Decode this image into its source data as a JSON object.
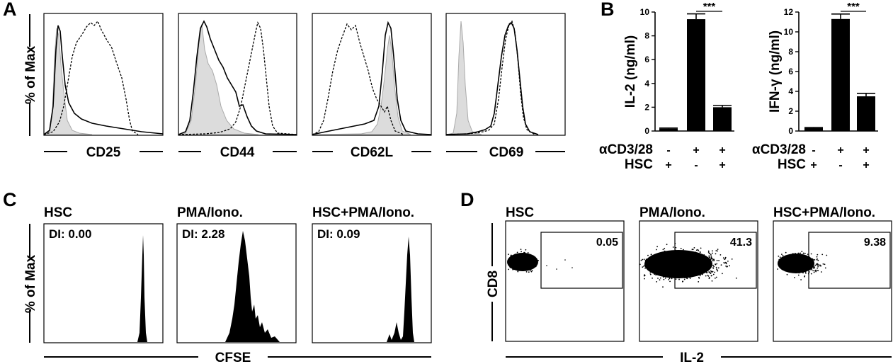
{
  "panels": {
    "A": {
      "letter": "A",
      "ylabel": "% of Max",
      "plots": [
        {
          "xlabel": "CD25"
        },
        {
          "xlabel": "CD44"
        },
        {
          "xlabel": "CD62L"
        },
        {
          "xlabel": "CD69"
        }
      ]
    },
    "B": {
      "letter": "B",
      "row_labels": {
        "acd": "αCD3/28",
        "hsc": "HSC"
      },
      "conditions": [
        {
          "acd": "-",
          "hsc": "+"
        },
        {
          "acd": "+",
          "hsc": "-"
        },
        {
          "acd": "+",
          "hsc": "+"
        }
      ]
    },
    "C": {
      "letter": "C",
      "ylabel": "% of Max",
      "xlabel": "CFSE",
      "plots": [
        {
          "title": "HSC",
          "di": "DI: 0.00"
        },
        {
          "title": "PMA/Iono.",
          "di": "DI: 2.28"
        },
        {
          "title": "HSC+PMA/Iono.",
          "di": "DI: 0.09"
        }
      ]
    },
    "D": {
      "letter": "D",
      "ylabel": "CD8",
      "xlabel": "IL-2",
      "plots": [
        {
          "title": "HSC",
          "gate_value": "0.05"
        },
        {
          "title": "PMA/Iono.",
          "gate_value": "41.3"
        },
        {
          "title": "HSC+PMA/Iono.",
          "gate_value": "9.38"
        }
      ]
    }
  },
  "chart_data": [
    {
      "type": "bar",
      "ylabel": "IL-2 (ng/ml)",
      "ylim": [
        0,
        10
      ],
      "yticks": [
        "0",
        "2",
        "4",
        "6",
        "8",
        "10"
      ],
      "categories": [
        "αCD3/28 - / HSC +",
        "αCD3/28 + / HSC -",
        "αCD3/28 + / HSC +"
      ],
      "values": [
        0.2,
        9.4,
        2.0
      ],
      "errors": [
        0.05,
        0.45,
        0.15
      ],
      "significance": "***",
      "significance_between": [
        1,
        2
      ],
      "bar_color": "#000000"
    },
    {
      "type": "bar",
      "ylabel": "IFN-γ (ng/ml)",
      "ylim": [
        0,
        12
      ],
      "yticks": [
        "0",
        "2",
        "4",
        "6",
        "8",
        "10",
        "12"
      ],
      "categories": [
        "αCD3/28 - / HSC +",
        "αCD3/28 + / HSC -",
        "αCD3/28 + / HSC +"
      ],
      "values": [
        0.3,
        11.3,
        3.5
      ],
      "errors": [
        0.05,
        0.5,
        0.3
      ],
      "significance": "***",
      "significance_between": [
        1,
        2
      ],
      "bar_color": "#000000"
    }
  ]
}
